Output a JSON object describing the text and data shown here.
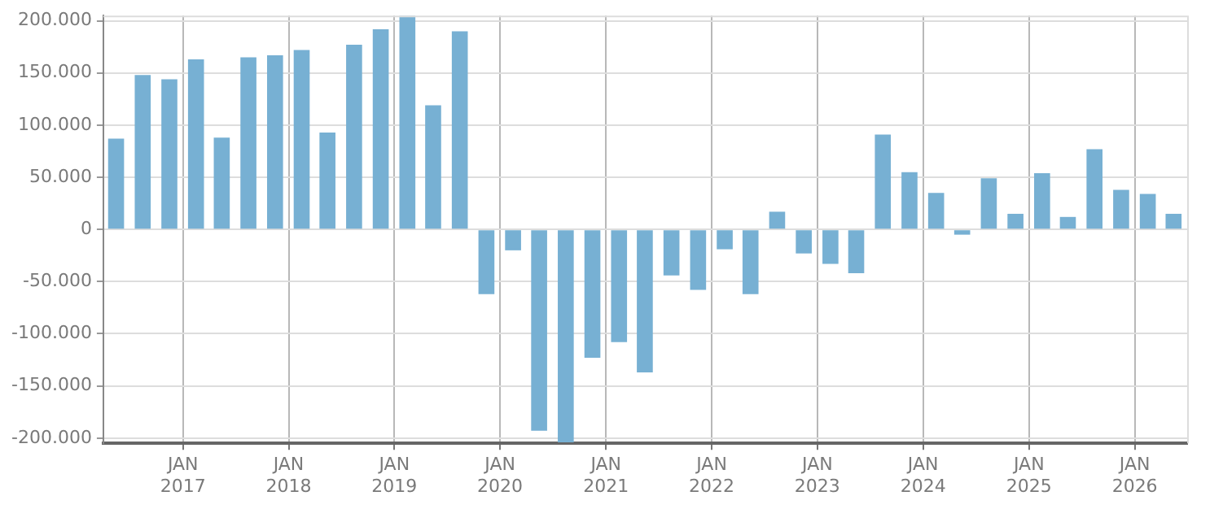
{
  "chart_data": {
    "type": "bar",
    "x": [
      "2016-05-15",
      "2016-08-15",
      "2016-11-15",
      "2017-02-15",
      "2017-05-15",
      "2017-08-15",
      "2017-11-15",
      "2018-02-15",
      "2018-05-15",
      "2018-08-15",
      "2018-11-15",
      "2019-02-15",
      "2019-05-15",
      "2019-08-15",
      "2019-11-15",
      "2020-02-15",
      "2020-05-15",
      "2020-08-15",
      "2020-11-15",
      "2021-02-15",
      "2021-05-15",
      "2021-08-15",
      "2021-11-15",
      "2022-02-15",
      "2022-05-15",
      "2022-08-15",
      "2022-11-15",
      "2023-02-15",
      "2023-05-15",
      "2023-08-15",
      "2023-11-15",
      "2024-02-15",
      "2024-05-15",
      "2024-08-15",
      "2024-11-15",
      "2025-02-15",
      "2025-05-15",
      "2025-08-15",
      "2025-11-15",
      "2026-02-15",
      "2026-05-15"
    ],
    "series": [
      {
        "color": "#77b0d3",
        "values": [
          87000,
          148000,
          144000,
          163000,
          88000,
          165000,
          167000,
          172000,
          93000,
          177000,
          192000,
          205000,
          119000,
          190000,
          -62000,
          -20000,
          -193000,
          -204000,
          -123000,
          -108000,
          -137000,
          -44000,
          -58000,
          -19000,
          -62000,
          17000,
          -23000,
          -33000,
          -42000,
          91000,
          55000,
          35000,
          -5000,
          49000,
          15000,
          54000,
          12000,
          77000,
          38000,
          34000,
          15000
        ]
      }
    ],
    "xlim": [
      "2016-04-01",
      "2026-07-01"
    ],
    "xticks": [
      {
        "value": "2017-01-01",
        "label": "JAN 2017"
      },
      {
        "value": "2018-01-01",
        "label": "JAN 2018"
      },
      {
        "value": "2019-01-01",
        "label": "JAN 2019"
      },
      {
        "value": "2020-01-01",
        "label": "JAN 2020"
      },
      {
        "value": "2021-01-01",
        "label": "JAN 2021"
      },
      {
        "value": "2022-01-01",
        "label": "JAN 2022"
      },
      {
        "value": "2023-01-01",
        "label": "JAN 2023"
      },
      {
        "value": "2024-01-01",
        "label": "JAN 2024"
      },
      {
        "value": "2025-01-01",
        "label": "JAN 2025"
      },
      {
        "value": "2026-01-01",
        "label": "JAN 2026"
      }
    ],
    "ylim": [
      -205000,
      205000
    ],
    "yticks": [
      {
        "value": -200000,
        "label": "-200.000"
      },
      {
        "value": -150000,
        "label": "-150.000"
      },
      {
        "value": -100000,
        "label": "-100.000"
      },
      {
        "value": -50000,
        "label": "-50.000"
      },
      {
        "value": 0,
        "label": "0"
      },
      {
        "value": 50000,
        "label": "50.000"
      },
      {
        "value": 100000,
        "label": "100.000"
      },
      {
        "value": 150000,
        "label": "150.000"
      },
      {
        "value": 200000,
        "label": "200.000"
      }
    ],
    "grid": true,
    "legend": false
  }
}
